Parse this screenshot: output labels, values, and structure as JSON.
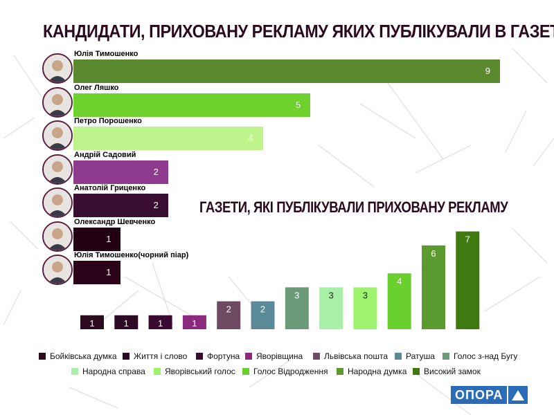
{
  "title_main": "КАНДИДАТИ, ПРИХОВАНУ РЕКЛАМУ ЯКИХ ПУБЛІКУВАЛИ В ГАЗЕТАХ",
  "title_sub": "ГАЗЕТИ, ЯКІ ПУБЛІКУВАЛИ ПРИХОВАНУ РЕКЛАМУ",
  "logo_text": "ОПОРА",
  "chart_data": [
    {
      "type": "bar",
      "orientation": "horizontal",
      "title": "КАНДИДАТИ, ПРИХОВАНУ РЕКЛАМУ ЯКИХ ПУБЛІКУВАЛИ В ГАЗЕТАХ",
      "xlim": [
        0,
        9
      ],
      "categories": [
        "Юлія Тимошенко",
        "Олег Ляшко",
        "Петро Порошенко",
        "Андрій Садовий",
        "Анатолій Гриценко",
        "Олександр Шевченко",
        "Юлія Тимошенко(чорний піар)"
      ],
      "values": [
        9,
        5,
        4,
        2,
        2,
        1,
        1
      ],
      "colors": [
        "#5b8a2e",
        "#6fd12e",
        "#bdf58c",
        "#8e3a8e",
        "#3a0e33",
        "#220011",
        "#2b0218"
      ],
      "value_labels": [
        "9",
        "5",
        "4",
        "2",
        "2",
        "1",
        "1"
      ]
    },
    {
      "type": "bar",
      "title": "ГАЗЕТИ, ЯКІ ПУБЛІКУВАЛИ ПРИХОВАНУ РЕКЛАМУ",
      "ylim": [
        0,
        7
      ],
      "categories": [
        "Бойківська думка",
        "Життя і слово",
        "Фортуна",
        "Яворівщина",
        "Львівська пошта",
        "Ратуша",
        "Голос з-над Бугу",
        "Народна справа",
        "Яворівський голос",
        "Голос Відродження",
        "Народна думка",
        "Високий замок"
      ],
      "values": [
        1,
        1,
        1,
        1,
        2,
        2,
        3,
        3,
        3,
        4,
        6,
        7
      ],
      "colors": [
        "#2b0a1e",
        "#2e0926",
        "#3a0a30",
        "#8a2a7e",
        "#6e4a62",
        "#5a8a98",
        "#6a9a78",
        "#a8f0a8",
        "#9df26e",
        "#6ad02e",
        "#5b9a2e",
        "#3e7a10"
      ],
      "value_labels": [
        "1",
        "1",
        "1",
        "1",
        "2",
        "2",
        "3",
        "3",
        "3",
        "4",
        "6",
        "7"
      ],
      "legend_placement": "bottom"
    }
  ]
}
